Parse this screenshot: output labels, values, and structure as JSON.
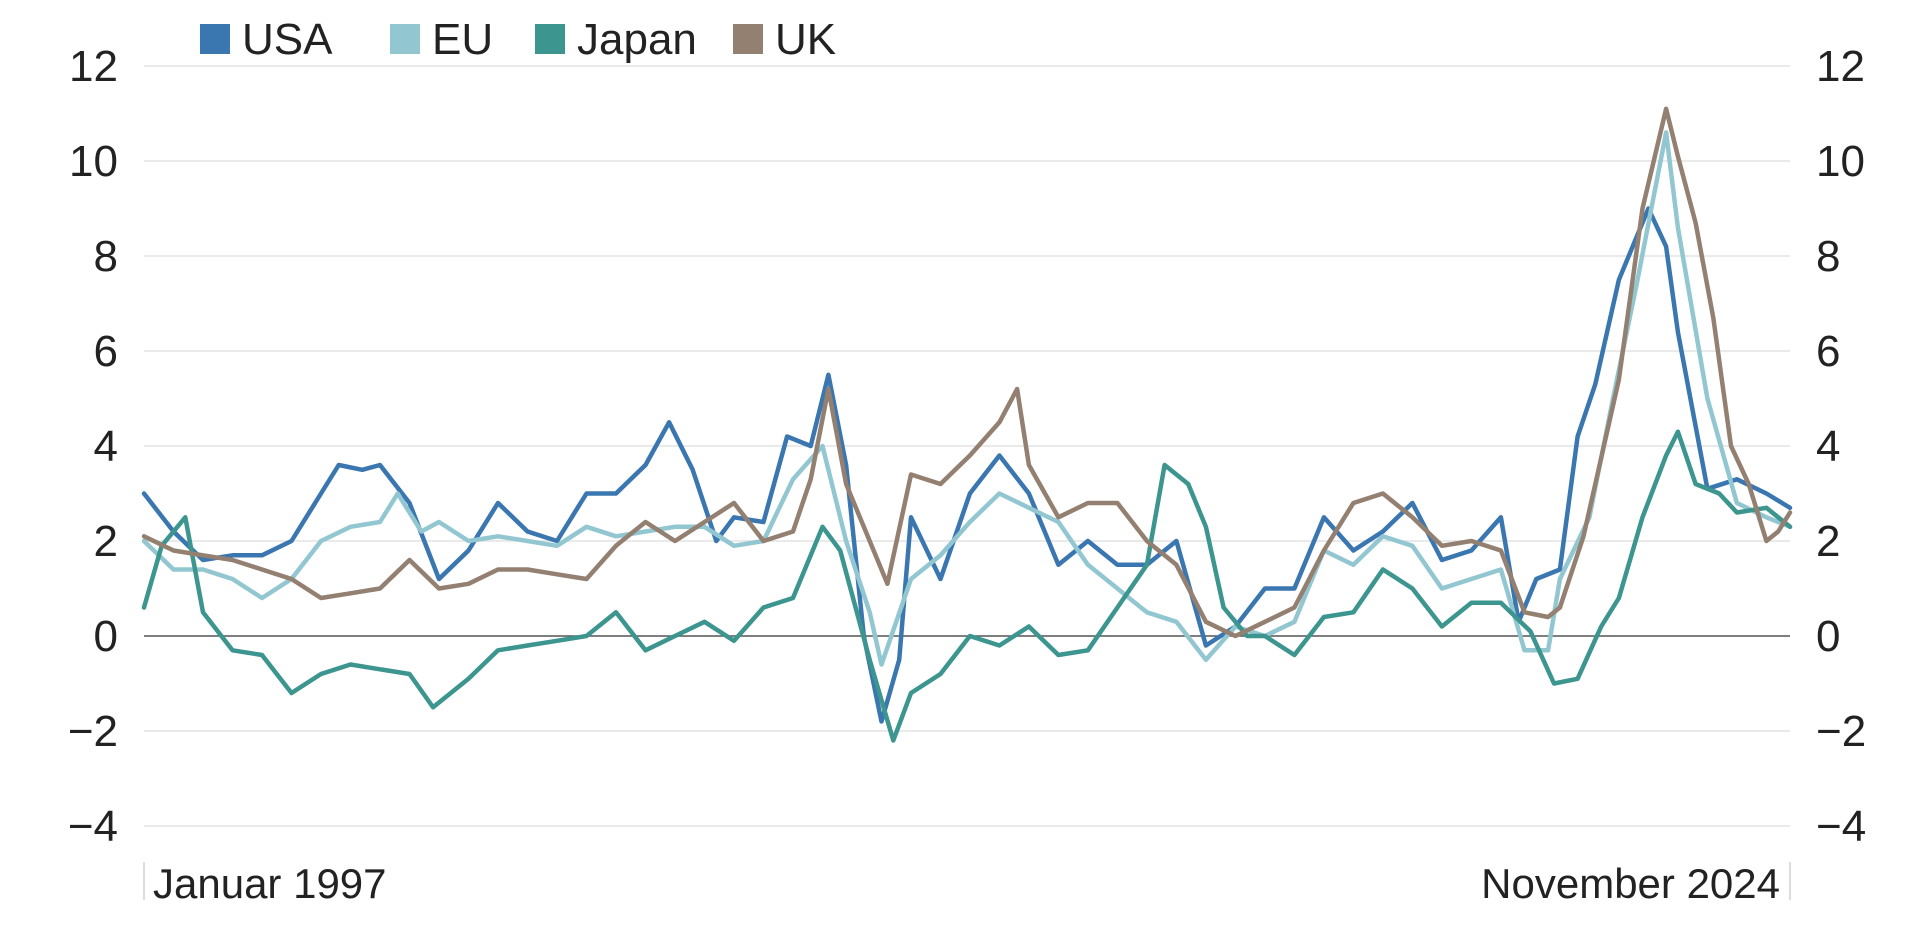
{
  "chart_data": {
    "type": "line",
    "title": "",
    "xlabel": "",
    "ylabel": "",
    "x_start_label": "Januar 1997",
    "x_end_label": "November 2024",
    "ylim": [
      -4,
      12
    ],
    "yticks": [
      12,
      10,
      8,
      6,
      4,
      2,
      0,
      -2,
      -4
    ],
    "dual_y_axis": true,
    "grid": true,
    "legend_position": "top-left",
    "series": [
      {
        "name": "USA",
        "color": "#3a76b0",
        "points": [
          [
            1997.0,
            3.0
          ],
          [
            1997.5,
            2.2
          ],
          [
            1998.0,
            1.6
          ],
          [
            1998.5,
            1.7
          ],
          [
            1999.0,
            1.7
          ],
          [
            1999.5,
            2.0
          ],
          [
            2000.0,
            3.0
          ],
          [
            2000.3,
            3.6
          ],
          [
            2000.7,
            3.5
          ],
          [
            2001.0,
            3.6
          ],
          [
            2001.5,
            2.8
          ],
          [
            2002.0,
            1.2
          ],
          [
            2002.5,
            1.8
          ],
          [
            2003.0,
            2.8
          ],
          [
            2003.5,
            2.2
          ],
          [
            2004.0,
            2.0
          ],
          [
            2004.5,
            3.0
          ],
          [
            2005.0,
            3.0
          ],
          [
            2005.5,
            3.6
          ],
          [
            2005.9,
            4.5
          ],
          [
            2006.3,
            3.5
          ],
          [
            2006.7,
            2.0
          ],
          [
            2007.0,
            2.5
          ],
          [
            2007.5,
            2.4
          ],
          [
            2007.9,
            4.2
          ],
          [
            2008.3,
            4.0
          ],
          [
            2008.6,
            5.5
          ],
          [
            2008.9,
            3.6
          ],
          [
            2009.2,
            0.0
          ],
          [
            2009.5,
            -1.8
          ],
          [
            2009.8,
            -0.5
          ],
          [
            2010.0,
            2.5
          ],
          [
            2010.5,
            1.2
          ],
          [
            2011.0,
            3.0
          ],
          [
            2011.5,
            3.8
          ],
          [
            2012.0,
            3.0
          ],
          [
            2012.5,
            1.5
          ],
          [
            2013.0,
            2.0
          ],
          [
            2013.5,
            1.5
          ],
          [
            2014.0,
            1.5
          ],
          [
            2014.5,
            2.0
          ],
          [
            2015.0,
            -0.2
          ],
          [
            2015.5,
            0.2
          ],
          [
            2016.0,
            1.0
          ],
          [
            2016.5,
            1.0
          ],
          [
            2017.0,
            2.5
          ],
          [
            2017.5,
            1.8
          ],
          [
            2018.0,
            2.2
          ],
          [
            2018.5,
            2.8
          ],
          [
            2019.0,
            1.6
          ],
          [
            2019.5,
            1.8
          ],
          [
            2020.0,
            2.5
          ],
          [
            2020.3,
            0.3
          ],
          [
            2020.6,
            1.2
          ],
          [
            2021.0,
            1.4
          ],
          [
            2021.3,
            4.2
          ],
          [
            2021.6,
            5.3
          ],
          [
            2022.0,
            7.5
          ],
          [
            2022.5,
            9.0
          ],
          [
            2022.8,
            8.2
          ],
          [
            2023.0,
            6.4
          ],
          [
            2023.5,
            3.1
          ],
          [
            2024.0,
            3.3
          ],
          [
            2024.5,
            3.0
          ],
          [
            2024.9,
            2.7
          ]
        ]
      },
      {
        "name": "EU",
        "color": "#92c7d2",
        "points": [
          [
            1997.0,
            2.0
          ],
          [
            1997.5,
            1.4
          ],
          [
            1998.0,
            1.4
          ],
          [
            1998.5,
            1.2
          ],
          [
            1999.0,
            0.8
          ],
          [
            1999.5,
            1.2
          ],
          [
            2000.0,
            2.0
          ],
          [
            2000.5,
            2.3
          ],
          [
            2001.0,
            2.4
          ],
          [
            2001.3,
            3.0
          ],
          [
            2001.7,
            2.2
          ],
          [
            2002.0,
            2.4
          ],
          [
            2002.5,
            2.0
          ],
          [
            2003.0,
            2.1
          ],
          [
            2003.5,
            2.0
          ],
          [
            2004.0,
            1.9
          ],
          [
            2004.5,
            2.3
          ],
          [
            2005.0,
            2.1
          ],
          [
            2005.5,
            2.2
          ],
          [
            2006.0,
            2.3
          ],
          [
            2006.5,
            2.3
          ],
          [
            2007.0,
            1.9
          ],
          [
            2007.5,
            2.0
          ],
          [
            2008.0,
            3.3
          ],
          [
            2008.5,
            4.0
          ],
          [
            2008.9,
            2.0
          ],
          [
            2009.3,
            0.5
          ],
          [
            2009.5,
            -0.6
          ],
          [
            2010.0,
            1.2
          ],
          [
            2010.5,
            1.7
          ],
          [
            2011.0,
            2.4
          ],
          [
            2011.5,
            3.0
          ],
          [
            2012.0,
            2.7
          ],
          [
            2012.5,
            2.4
          ],
          [
            2013.0,
            1.5
          ],
          [
            2013.5,
            1.0
          ],
          [
            2014.0,
            0.5
          ],
          [
            2014.5,
            0.3
          ],
          [
            2015.0,
            -0.5
          ],
          [
            2015.5,
            0.2
          ],
          [
            2016.0,
            0.0
          ],
          [
            2016.5,
            0.3
          ],
          [
            2017.0,
            1.8
          ],
          [
            2017.5,
            1.5
          ],
          [
            2018.0,
            2.1
          ],
          [
            2018.5,
            1.9
          ],
          [
            2019.0,
            1.0
          ],
          [
            2019.5,
            1.2
          ],
          [
            2020.0,
            1.4
          ],
          [
            2020.4,
            -0.3
          ],
          [
            2020.8,
            -0.3
          ],
          [
            2021.0,
            1.2
          ],
          [
            2021.5,
            2.5
          ],
          [
            2021.9,
            5.0
          ],
          [
            2022.3,
            7.4
          ],
          [
            2022.8,
            10.6
          ],
          [
            2023.0,
            8.6
          ],
          [
            2023.5,
            5.0
          ],
          [
            2024.0,
            2.8
          ],
          [
            2024.5,
            2.5
          ],
          [
            2024.9,
            2.3
          ]
        ]
      },
      {
        "name": "Japan",
        "color": "#3c958e",
        "points": [
          [
            1997.0,
            0.6
          ],
          [
            1997.3,
            1.9
          ],
          [
            1997.7,
            2.5
          ],
          [
            1998.0,
            0.5
          ],
          [
            1998.5,
            -0.3
          ],
          [
            1999.0,
            -0.4
          ],
          [
            1999.5,
            -1.2
          ],
          [
            2000.0,
            -0.8
          ],
          [
            2000.5,
            -0.6
          ],
          [
            2001.0,
            -0.7
          ],
          [
            2001.5,
            -0.8
          ],
          [
            2001.9,
            -1.5
          ],
          [
            2002.5,
            -0.9
          ],
          [
            2003.0,
            -0.3
          ],
          [
            2003.5,
            -0.2
          ],
          [
            2004.0,
            -0.1
          ],
          [
            2004.5,
            0.0
          ],
          [
            2005.0,
            0.5
          ],
          [
            2005.5,
            -0.3
          ],
          [
            2006.0,
            0.0
          ],
          [
            2006.5,
            0.3
          ],
          [
            2007.0,
            -0.1
          ],
          [
            2007.5,
            0.6
          ],
          [
            2008.0,
            0.8
          ],
          [
            2008.5,
            2.3
          ],
          [
            2008.8,
            1.8
          ],
          [
            2009.3,
            -0.5
          ],
          [
            2009.7,
            -2.2
          ],
          [
            2010.0,
            -1.2
          ],
          [
            2010.5,
            -0.8
          ],
          [
            2011.0,
            0.0
          ],
          [
            2011.5,
            -0.2
          ],
          [
            2012.0,
            0.2
          ],
          [
            2012.5,
            -0.4
          ],
          [
            2013.0,
            -0.3
          ],
          [
            2013.5,
            0.6
          ],
          [
            2014.0,
            1.5
          ],
          [
            2014.3,
            3.6
          ],
          [
            2014.7,
            3.2
          ],
          [
            2015.0,
            2.3
          ],
          [
            2015.3,
            0.6
          ],
          [
            2015.7,
            0.0
          ],
          [
            2016.0,
            0.0
          ],
          [
            2016.5,
            -0.4
          ],
          [
            2017.0,
            0.4
          ],
          [
            2017.5,
            0.5
          ],
          [
            2018.0,
            1.4
          ],
          [
            2018.5,
            1.0
          ],
          [
            2019.0,
            0.2
          ],
          [
            2019.5,
            0.7
          ],
          [
            2020.0,
            0.7
          ],
          [
            2020.5,
            0.1
          ],
          [
            2020.9,
            -1.0
          ],
          [
            2021.3,
            -0.9
          ],
          [
            2021.7,
            0.2
          ],
          [
            2022.0,
            0.8
          ],
          [
            2022.4,
            2.5
          ],
          [
            2022.8,
            3.8
          ],
          [
            2023.0,
            4.3
          ],
          [
            2023.3,
            3.2
          ],
          [
            2023.7,
            3.0
          ],
          [
            2024.0,
            2.6
          ],
          [
            2024.5,
            2.7
          ],
          [
            2024.9,
            2.3
          ]
        ]
      },
      {
        "name": "UK",
        "color": "#938071",
        "points": [
          [
            1997.0,
            2.1
          ],
          [
            1997.5,
            1.8
          ],
          [
            1998.0,
            1.7
          ],
          [
            1998.5,
            1.6
          ],
          [
            1999.0,
            1.4
          ],
          [
            1999.5,
            1.2
          ],
          [
            2000.0,
            0.8
          ],
          [
            2000.5,
            0.9
          ],
          [
            2001.0,
            1.0
          ],
          [
            2001.5,
            1.6
          ],
          [
            2002.0,
            1.0
          ],
          [
            2002.5,
            1.1
          ],
          [
            2003.0,
            1.4
          ],
          [
            2003.5,
            1.4
          ],
          [
            2004.0,
            1.3
          ],
          [
            2004.5,
            1.2
          ],
          [
            2005.0,
            1.9
          ],
          [
            2005.5,
            2.4
          ],
          [
            2006.0,
            2.0
          ],
          [
            2006.5,
            2.4
          ],
          [
            2007.0,
            2.8
          ],
          [
            2007.5,
            2.0
          ],
          [
            2008.0,
            2.2
          ],
          [
            2008.3,
            3.3
          ],
          [
            2008.6,
            5.2
          ],
          [
            2008.9,
            3.2
          ],
          [
            2009.3,
            2.0
          ],
          [
            2009.6,
            1.1
          ],
          [
            2010.0,
            3.4
          ],
          [
            2010.5,
            3.2
          ],
          [
            2011.0,
            3.8
          ],
          [
            2011.5,
            4.5
          ],
          [
            2011.8,
            5.2
          ],
          [
            2012.0,
            3.6
          ],
          [
            2012.5,
            2.5
          ],
          [
            2013.0,
            2.8
          ],
          [
            2013.5,
            2.8
          ],
          [
            2014.0,
            2.0
          ],
          [
            2014.5,
            1.5
          ],
          [
            2015.0,
            0.3
          ],
          [
            2015.5,
            0.0
          ],
          [
            2016.0,
            0.3
          ],
          [
            2016.5,
            0.6
          ],
          [
            2017.0,
            1.8
          ],
          [
            2017.5,
            2.8
          ],
          [
            2018.0,
            3.0
          ],
          [
            2018.5,
            2.5
          ],
          [
            2019.0,
            1.9
          ],
          [
            2019.5,
            2.0
          ],
          [
            2020.0,
            1.8
          ],
          [
            2020.4,
            0.5
          ],
          [
            2020.8,
            0.4
          ],
          [
            2021.0,
            0.6
          ],
          [
            2021.4,
            2.1
          ],
          [
            2021.6,
            3.2
          ],
          [
            2022.0,
            5.4
          ],
          [
            2022.4,
            9.0
          ],
          [
            2022.8,
            11.1
          ],
          [
            2023.0,
            10.1
          ],
          [
            2023.3,
            8.7
          ],
          [
            2023.6,
            6.7
          ],
          [
            2023.9,
            4.0
          ],
          [
            2024.2,
            3.2
          ],
          [
            2024.5,
            2.0
          ],
          [
            2024.7,
            2.2
          ],
          [
            2024.9,
            2.6
          ]
        ]
      }
    ]
  }
}
